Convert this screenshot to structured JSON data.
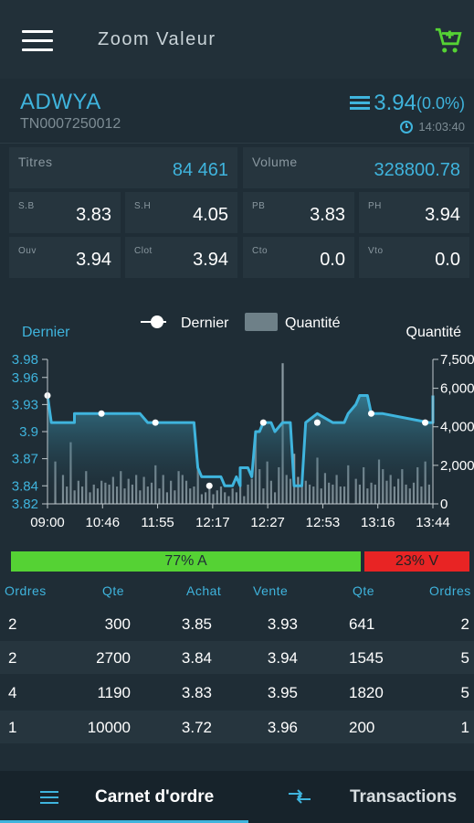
{
  "app": {
    "title": "Zoom Valeur",
    "menu_icon": "hamburger-icon",
    "cart_icon": "cart-plus-icon",
    "cart_color": "#55d234"
  },
  "stock": {
    "symbol": "ADWYA",
    "isin": "TN0007250012",
    "price": "3.94",
    "variation": "(0.0%)",
    "time": "14:03:40",
    "accent": "#3fb4dd"
  },
  "stats": {
    "titres_label": "Titres",
    "titres_value": "84 461",
    "volume_label": "Volume",
    "volume_value": "328800.78",
    "sb_label": "S.B",
    "sb_value": "3.83",
    "sh_label": "S.H",
    "sh_value": "4.05",
    "pb_label": "PB",
    "pb_value": "3.83",
    "ph_label": "PH",
    "ph_value": "3.94",
    "ouv_label": "Ouv",
    "ouv_value": "3.94",
    "clot_label": "Clot",
    "clot_value": "3.94",
    "cto_label": "Cto",
    "cto_value": "0.0",
    "vto_label": "Vto",
    "vto_value": "0.0"
  },
  "chart_data": {
    "type": "line",
    "left_axis_label": "Dernier",
    "right_axis_label": "Quantité",
    "legend": [
      "Dernier",
      "Quantité"
    ],
    "left_ticks": [
      "3.98",
      "3.96",
      "3.93",
      "3.9",
      "3.87",
      "3.84",
      "3.82"
    ],
    "left_tick_values": [
      3.98,
      3.96,
      3.93,
      3.9,
      3.87,
      3.84,
      3.82
    ],
    "right_ticks": [
      "7,500",
      "6,000",
      "4,000",
      "2,000",
      "0"
    ],
    "right_tick_values": [
      7500,
      6000,
      4000,
      2000,
      0
    ],
    "x_ticks": [
      "09:00",
      "10:46",
      "11:55",
      "12:17",
      "12:27",
      "12:53",
      "13:16",
      "13:44"
    ],
    "ylim": [
      3.82,
      3.98
    ],
    "y2lim": [
      0,
      7500
    ],
    "line_color": "#3fb4dd",
    "line": [
      [
        0,
        3.94
      ],
      [
        0.01,
        3.91
      ],
      [
        0.07,
        3.91
      ],
      [
        0.07,
        3.92
      ],
      [
        0.14,
        3.92
      ],
      [
        0.24,
        3.92
      ],
      [
        0.26,
        3.91
      ],
      [
        0.38,
        3.91
      ],
      [
        0.39,
        3.86
      ],
      [
        0.4,
        3.85
      ],
      [
        0.45,
        3.85
      ],
      [
        0.46,
        3.84
      ],
      [
        0.48,
        3.84
      ],
      [
        0.49,
        3.85
      ],
      [
        0.5,
        3.84
      ],
      [
        0.5,
        3.86
      ],
      [
        0.52,
        3.86
      ],
      [
        0.53,
        3.85
      ],
      [
        0.54,
        3.9
      ],
      [
        0.55,
        3.9
      ],
      [
        0.56,
        3.91
      ],
      [
        0.58,
        3.91
      ],
      [
        0.59,
        3.9
      ],
      [
        0.61,
        3.91
      ],
      [
        0.63,
        3.91
      ],
      [
        0.64,
        3.84
      ],
      [
        0.66,
        3.84
      ],
      [
        0.67,
        3.91
      ],
      [
        0.7,
        3.92
      ],
      [
        0.74,
        3.91
      ],
      [
        0.77,
        3.91
      ],
      [
        0.78,
        3.92
      ],
      [
        0.8,
        3.93
      ],
      [
        0.81,
        3.94
      ],
      [
        0.83,
        3.94
      ],
      [
        0.84,
        3.92
      ],
      [
        0.87,
        3.92
      ],
      [
        0.99,
        3.91
      ],
      [
        1.0,
        3.91
      ],
      [
        1.0,
        3.94
      ]
    ],
    "line_markers": [
      [
        0,
        3.94
      ],
      [
        0.14,
        3.92
      ],
      [
        0.28,
        3.91
      ],
      [
        0.42,
        3.84
      ],
      [
        0.56,
        3.91
      ],
      [
        0.7,
        3.91
      ],
      [
        0.84,
        3.92
      ],
      [
        0.98,
        3.91
      ]
    ],
    "qty_bars": [
      [
        0.02,
        2200
      ],
      [
        0.04,
        1500
      ],
      [
        0.05,
        900
      ],
      [
        0.06,
        3200
      ],
      [
        0.07,
        700
      ],
      [
        0.08,
        1200
      ],
      [
        0.09,
        900
      ],
      [
        0.1,
        1700
      ],
      [
        0.11,
        600
      ],
      [
        0.12,
        1000
      ],
      [
        0.13,
        800
      ],
      [
        0.14,
        1200
      ],
      [
        0.15,
        1100
      ],
      [
        0.16,
        1000
      ],
      [
        0.17,
        1400
      ],
      [
        0.18,
        900
      ],
      [
        0.19,
        1700
      ],
      [
        0.2,
        800
      ],
      [
        0.21,
        1300
      ],
      [
        0.22,
        1000
      ],
      [
        0.23,
        1500
      ],
      [
        0.24,
        700
      ],
      [
        0.25,
        1400
      ],
      [
        0.26,
        900
      ],
      [
        0.27,
        1100
      ],
      [
        0.28,
        2000
      ],
      [
        0.29,
        800
      ],
      [
        0.3,
        1500
      ],
      [
        0.31,
        600
      ],
      [
        0.32,
        1200
      ],
      [
        0.33,
        700
      ],
      [
        0.34,
        1700
      ],
      [
        0.35,
        1500
      ],
      [
        0.36,
        1200
      ],
      [
        0.37,
        800
      ],
      [
        0.38,
        900
      ],
      [
        0.39,
        1800
      ],
      [
        0.4,
        500
      ],
      [
        0.41,
        600
      ],
      [
        0.42,
        800
      ],
      [
        0.43,
        500
      ],
      [
        0.44,
        700
      ],
      [
        0.45,
        900
      ],
      [
        0.46,
        600
      ],
      [
        0.47,
        400
      ],
      [
        0.48,
        800
      ],
      [
        0.49,
        600
      ],
      [
        0.5,
        1300
      ],
      [
        0.51,
        400
      ],
      [
        0.52,
        1000
      ],
      [
        0.53,
        1300
      ],
      [
        0.54,
        3700
      ],
      [
        0.55,
        1800
      ],
      [
        0.56,
        800
      ],
      [
        0.57,
        2200
      ],
      [
        0.58,
        1200
      ],
      [
        0.59,
        600
      ],
      [
        0.6,
        1900
      ],
      [
        0.61,
        7300
      ],
      [
        0.62,
        1500
      ],
      [
        0.63,
        1300
      ],
      [
        0.64,
        2600
      ],
      [
        0.65,
        1400
      ],
      [
        0.66,
        1000
      ],
      [
        0.67,
        1200
      ],
      [
        0.68,
        1000
      ],
      [
        0.69,
        900
      ],
      [
        0.7,
        2400
      ],
      [
        0.71,
        800
      ],
      [
        0.72,
        1600
      ],
      [
        0.73,
        1100
      ],
      [
        0.74,
        1000
      ],
      [
        0.75,
        1500
      ],
      [
        0.76,
        900
      ],
      [
        0.77,
        900
      ],
      [
        0.78,
        2000
      ],
      [
        0.8,
        1300
      ],
      [
        0.81,
        1000
      ],
      [
        0.82,
        1900
      ],
      [
        0.83,
        800
      ],
      [
        0.84,
        1100
      ],
      [
        0.85,
        1000
      ],
      [
        0.86,
        2300
      ],
      [
        0.87,
        1800
      ],
      [
        0.88,
        1200
      ],
      [
        0.89,
        1500
      ],
      [
        0.9,
        900
      ],
      [
        0.91,
        1300
      ],
      [
        0.92,
        1800
      ],
      [
        0.93,
        1000
      ],
      [
        0.94,
        800
      ],
      [
        0.95,
        1100
      ],
      [
        0.96,
        1900
      ],
      [
        0.97,
        900
      ],
      [
        0.98,
        2200
      ],
      [
        0.99,
        1000
      ]
    ]
  },
  "pressure": {
    "buy_pct": 77,
    "buy_label": "77% A",
    "sell_pct": 23,
    "sell_label": "23% V"
  },
  "order_book": {
    "headers": [
      "Ordres",
      "Qte",
      "Achat",
      "Vente",
      "Qte",
      "Ordres"
    ],
    "rows": [
      [
        "2",
        "300",
        "3.85",
        "3.93",
        "641",
        "2"
      ],
      [
        "2",
        "2700",
        "3.84",
        "3.94",
        "1545",
        "5"
      ],
      [
        "4",
        "1190",
        "3.83",
        "3.95",
        "1820",
        "5"
      ],
      [
        "1",
        "10000",
        "3.72",
        "3.96",
        "200",
        "1"
      ]
    ]
  },
  "tabs": {
    "order_book_label": "Carnet d'ordre",
    "transactions_label": "Transactions",
    "order_book_icon": "list-icon",
    "transactions_icon": "arrows-swap-icon"
  }
}
